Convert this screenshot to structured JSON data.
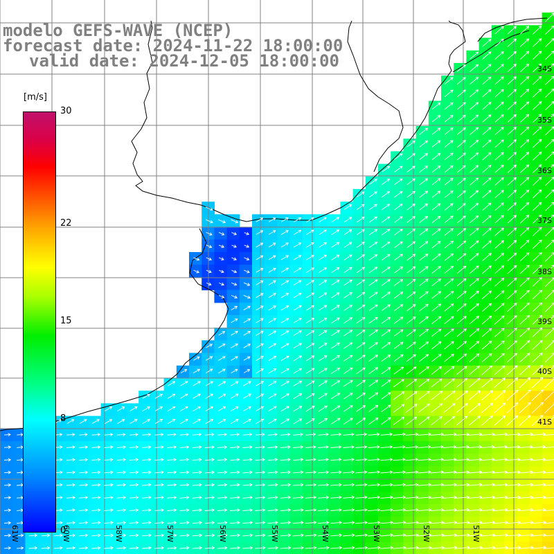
{
  "header": {
    "line1": "modelo GEFS-WAVE (NCEP)",
    "line2": "forecast date: 2024-11-22 18:00:00",
    "line3": "valid date: 2024-12-05 18:00:00"
  },
  "colorbar": {
    "unit": "[m/s]",
    "ticks": [
      {
        "label": "30",
        "value": 30
      },
      {
        "label": "22",
        "value": 22
      },
      {
        "label": "15",
        "value": 15
      },
      {
        "label": "8",
        "value": 8
      },
      {
        "label": "0",
        "value": 0
      }
    ],
    "range": [
      0,
      30
    ],
    "colors": [
      "#0000ff",
      "#00ffff",
      "#00ee00",
      "#ffff00",
      "#ff0000",
      "#c0106c"
    ]
  },
  "map": {
    "lat_labels": [
      "34S",
      "35S",
      "36S",
      "37S",
      "38S",
      "39S",
      "40S",
      "41S"
    ],
    "lon_labels": [
      "61W",
      "60W",
      "58W",
      "57W",
      "56W",
      "55W",
      "54W",
      "53W",
      "52W",
      "51W"
    ],
    "land_color": "#ffffff",
    "grid_color": "#808080",
    "coast_color": "#000000"
  }
}
